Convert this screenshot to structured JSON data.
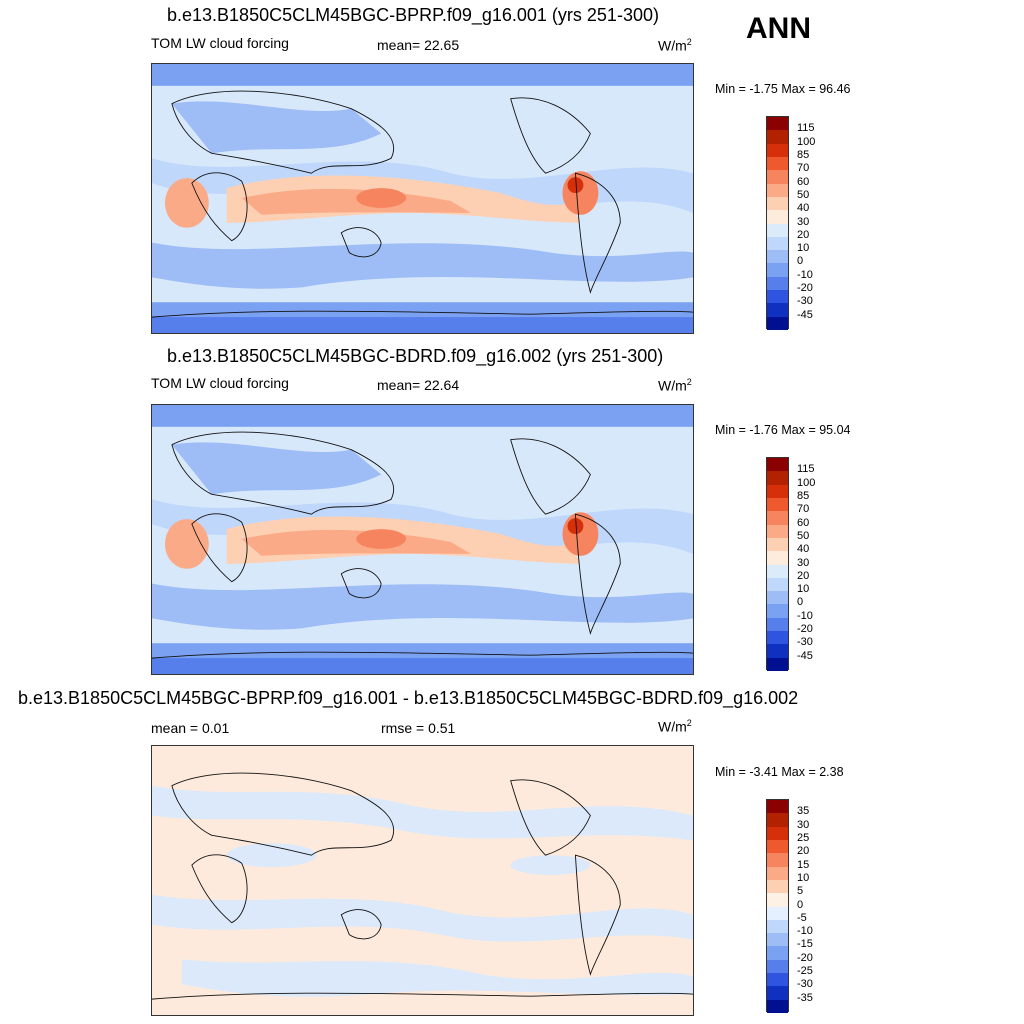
{
  "season": "ANN",
  "panels": [
    {
      "title": "b.e13.B1850C5CLM45BGC-BPRP.f09_g16.001 (yrs 251-300)",
      "left_label": "TOM LW cloud forcing",
      "center_label": "mean=  22.65",
      "units": "W/m",
      "units_sup": "2",
      "minmax": "Min =  -1.75 Max =  96.46",
      "colorbar_labels": [
        "115",
        "100",
        "85",
        "70",
        "60",
        "50",
        "40",
        "30",
        "20",
        "10",
        "0",
        "-10",
        "-20",
        "-30",
        "-45"
      ],
      "colorbar_colors": [
        "#8b0000",
        "#b22200",
        "#d6300a",
        "#ee5a2d",
        "#f6845e",
        "#fbaa87",
        "#fdd0b4",
        "#fdebdc",
        "#dcebfa",
        "#bfd7fb",
        "#9ebcf6",
        "#7ba2f2",
        "#567fec",
        "#2f55e0",
        "#1030c0",
        "#001090"
      ],
      "map_variant": "full"
    },
    {
      "title": "b.e13.B1850C5CLM45BGC-BDRD.f09_g16.002 (yrs 251-300)",
      "left_label": "TOM LW cloud forcing",
      "center_label": "mean=  22.64",
      "units": "W/m",
      "units_sup": "2",
      "minmax": "Min =  -1.76 Max =  95.04",
      "colorbar_labels": [
        "115",
        "100",
        "85",
        "70",
        "60",
        "50",
        "40",
        "30",
        "20",
        "10",
        "0",
        "-10",
        "-20",
        "-30",
        "-45"
      ],
      "colorbar_colors": [
        "#8b0000",
        "#b22200",
        "#d6300a",
        "#ee5a2d",
        "#f6845e",
        "#fbaa87",
        "#fdd0b4",
        "#fdebdc",
        "#dcebfa",
        "#bfd7fb",
        "#9ebcf6",
        "#7ba2f2",
        "#567fec",
        "#2f55e0",
        "#1030c0",
        "#001090"
      ],
      "map_variant": "full"
    },
    {
      "title": "b.e13.B1850C5CLM45BGC-BPRP.f09_g16.001 - b.e13.B1850C5CLM45BGC-BDRD.f09_g16.002",
      "left_label": "mean =   0.01",
      "center_label": "rmse =   0.51",
      "units": "W/m",
      "units_sup": "2",
      "minmax": "Min =  -3.41 Max =   2.38",
      "colorbar_labels": [
        "35",
        "30",
        "25",
        "20",
        "15",
        "10",
        "5",
        "0",
        "-5",
        "-10",
        "-15",
        "-20",
        "-25",
        "-30",
        "-35"
      ],
      "colorbar_colors": [
        "#8b0000",
        "#b22200",
        "#d6300a",
        "#ee5a2d",
        "#f6845e",
        "#fbaa87",
        "#fdd0b4",
        "#fdf0e4",
        "#e4efff",
        "#bfd7fb",
        "#9ebcf6",
        "#7ba2f2",
        "#567fec",
        "#2f55e0",
        "#1030c0",
        "#001090"
      ],
      "map_variant": "diff"
    }
  ]
}
